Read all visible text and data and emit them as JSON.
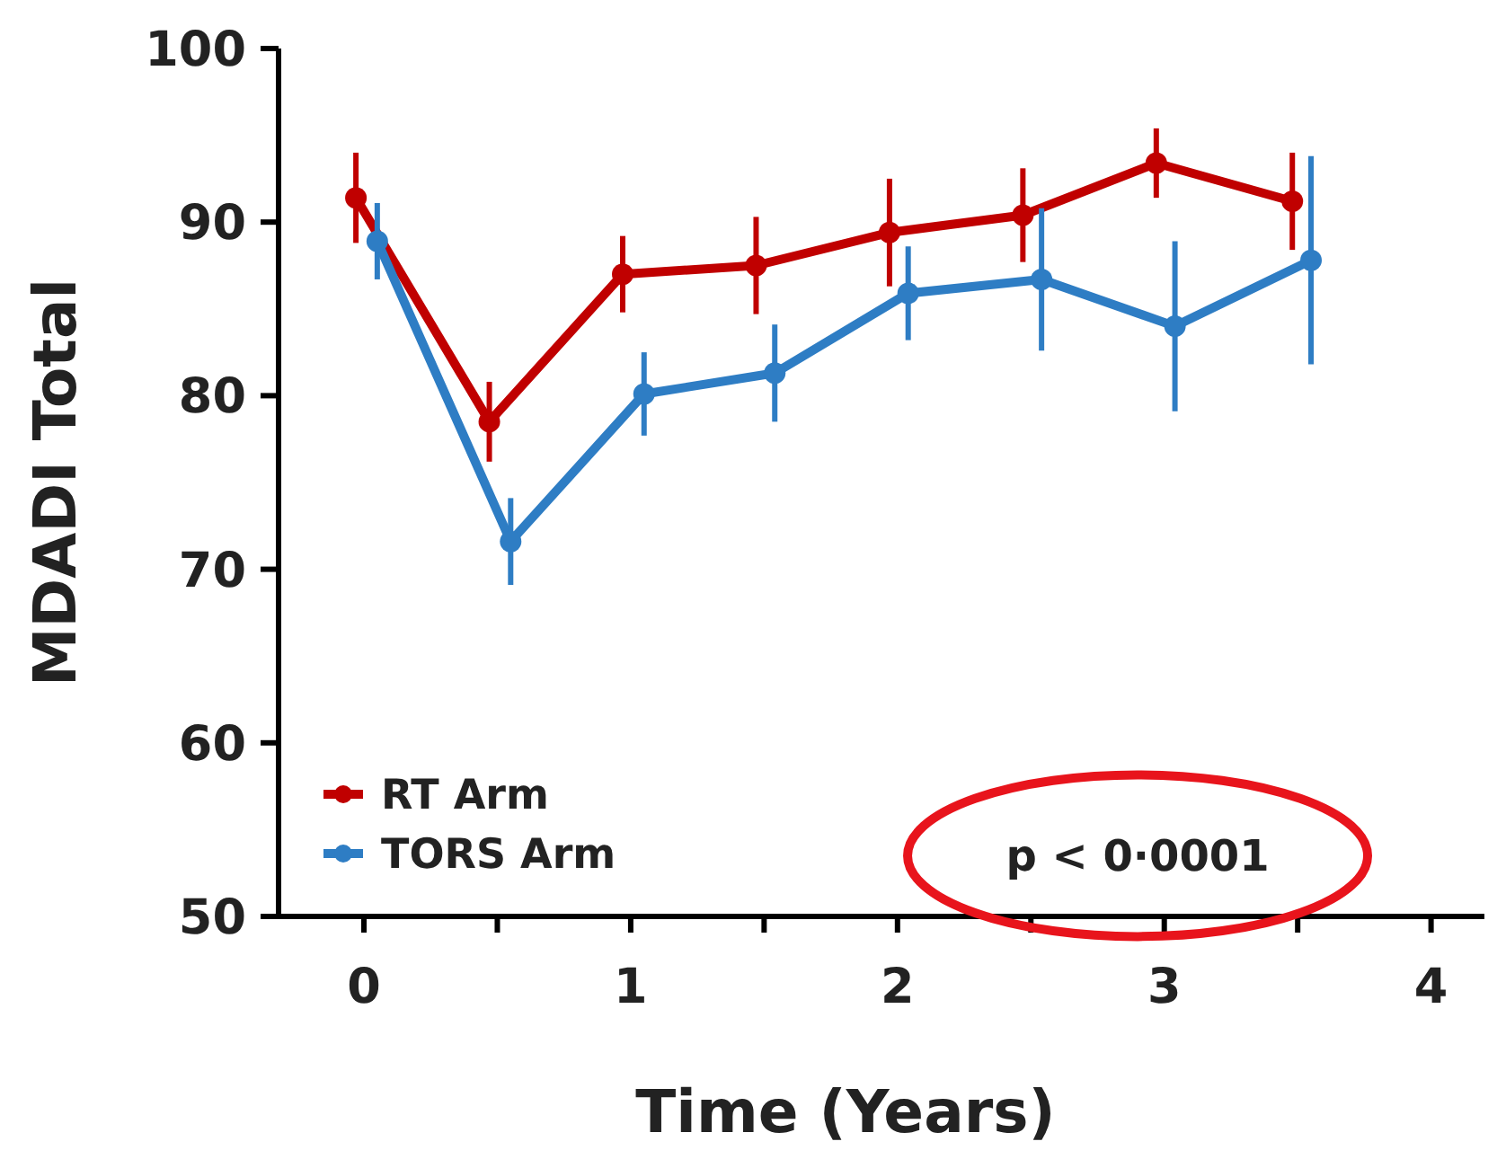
{
  "chart_data": {
    "type": "line",
    "xlabel": "Time (Years)",
    "ylabel": "MDADI Total",
    "xlim": [
      -0.32,
      4.2
    ],
    "xticks": [
      0,
      {
        "value": 0.5,
        "label": null
      },
      1,
      {
        "value": 1.5,
        "label": null
      },
      2,
      {
        "value": 2.5,
        "label": null
      },
      3,
      {
        "value": 3.5,
        "label": null
      },
      4
    ],
    "ylim": [
      50,
      100
    ],
    "yticks": [
      50,
      60,
      70,
      80,
      90,
      100
    ],
    "series": [
      {
        "name": "RT Arm",
        "color": "#c00000",
        "x": [
          -0.03,
          0.47,
          0.97,
          1.47,
          1.97,
          2.47,
          2.97,
          3.48
        ],
        "values": [
          91.4,
          78.5,
          87.0,
          87.5,
          89.4,
          90.4,
          93.4,
          91.2
        ],
        "errors": [
          2.6,
          2.3,
          2.2,
          2.8,
          3.1,
          2.7,
          2.0,
          2.8
        ]
      },
      {
        "name": "TORS Arm",
        "color": "#2e7dc4",
        "x": [
          0.05,
          0.55,
          1.05,
          1.54,
          2.04,
          2.54,
          3.04,
          3.55
        ],
        "values": [
          88.9,
          71.6,
          80.1,
          81.3,
          85.9,
          86.7,
          84.0,
          87.8
        ],
        "errors": [
          2.2,
          2.5,
          2.4,
          2.8,
          2.7,
          4.1,
          4.9,
          6.0
        ]
      }
    ],
    "annotations": [
      "p < 0·0001"
    ],
    "grid": false,
    "legend": "bottom left",
    "marker": "circle",
    "line_style": "solid"
  }
}
